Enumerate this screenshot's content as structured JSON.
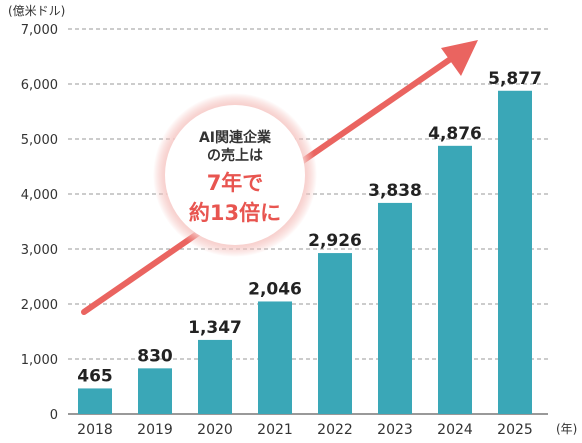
{
  "chart_data": {
    "type": "bar",
    "y_unit_label": "(億米ドル)",
    "x_unit_label": "(年)",
    "categories": [
      "2018",
      "2019",
      "2020",
      "2021",
      "2022",
      "2023",
      "2024",
      "2025"
    ],
    "values": [
      465,
      830,
      1347,
      2046,
      2926,
      3838,
      4876,
      5877
    ],
    "value_labels": [
      "465",
      "830",
      "1,347",
      "2,046",
      "2,926",
      "3,838",
      "4,876",
      "5,877"
    ],
    "ylim": [
      0,
      7000
    ],
    "yticks": [
      0,
      1000,
      2000,
      3000,
      4000,
      5000,
      6000,
      7000
    ],
    "ytick_labels": [
      "0",
      "1,000",
      "2,000",
      "3,000",
      "4,000",
      "5,000",
      "6,000",
      "7,000"
    ],
    "grid": true,
    "bar_color": "#3aa7b7",
    "arrow_color": "#ea6460",
    "annotation": {
      "line1": "AI関連企業",
      "line2": "の売上は",
      "line3": "7年で",
      "line4": "約13倍に"
    }
  }
}
